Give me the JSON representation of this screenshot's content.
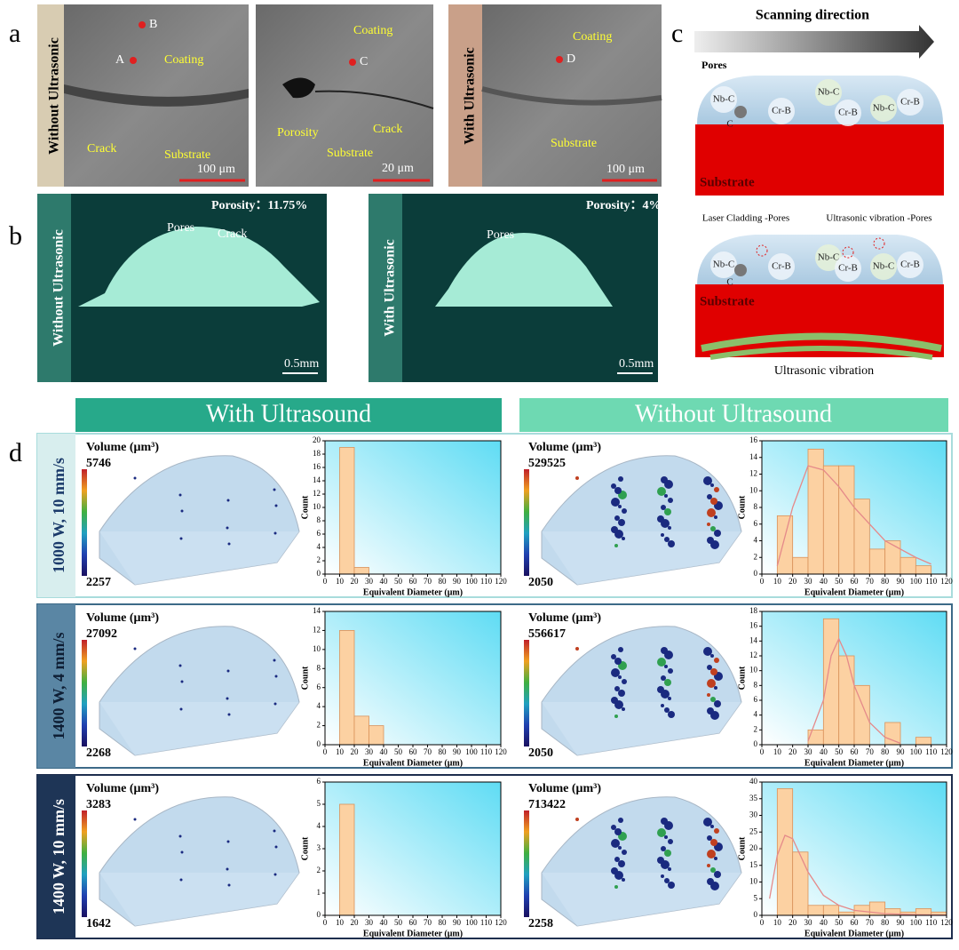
{
  "panel_a": {
    "label": "a",
    "side_labels": [
      "Without Ultrasonic",
      "With Ultrasonic"
    ],
    "images": [
      {
        "points": [
          "B",
          "A"
        ],
        "labels": [
          "Coating",
          "Crack",
          "Substrate"
        ],
        "scale": "100 μm"
      },
      {
        "points": [
          "C"
        ],
        "labels": [
          "Coating",
          "Porosity",
          "Crack",
          "Substrate"
        ],
        "scale": "20 μm"
      },
      {
        "points": [
          "D"
        ],
        "labels": [
          "Coating",
          "Substrate"
        ],
        "scale": "100 μm"
      }
    ]
  },
  "panel_b": {
    "label": "b",
    "images": [
      {
        "side_label": "Without Ultrasonic",
        "porosity": "Porosity：11.75%",
        "labels": [
          "Pores",
          "Crack"
        ],
        "scale": "0.5mm"
      },
      {
        "side_label": "With Ultrasonic",
        "porosity": "Porosity：4%",
        "labels": [
          "Pores"
        ],
        "scale": "0.5mm"
      }
    ]
  },
  "panel_c": {
    "label": "c",
    "arrow": "Scanning direction",
    "top": {
      "pores": "Pores",
      "phases": [
        "Nb-C",
        "C",
        "Cr-B",
        "Nb-C",
        "Cr-B",
        "Nb-C",
        "Cr-B"
      ],
      "substrate": "Substrate"
    },
    "bottom": {
      "annotations": [
        "Laser Cladding -Pores",
        "Ultrasonic vibration -Pores"
      ],
      "phases": [
        "Nb-C",
        "C",
        "Cr-B",
        "Nb-C",
        "Cr-B",
        "Nb-C",
        "Cr-B"
      ],
      "substrate": "Substrate",
      "caption": "Ultrasonic vibration"
    }
  },
  "panel_d": {
    "label": "d",
    "headers": [
      "With Ultrasound",
      "Without Ultrasound"
    ],
    "rows": [
      {
        "label": "1000 W, 10 mm/s",
        "colorbars": [
          {
            "title": "Volume (μm³)",
            "max": 5746,
            "min": 2257
          },
          {
            "title": "Volume (μm³)",
            "max": 529525,
            "min": 2050
          }
        ]
      },
      {
        "label": "1400 W, 4 mm/s",
        "colorbars": [
          {
            "title": "Volume (μm³)",
            "max": 27092,
            "min": 2268
          },
          {
            "title": "Volume (μm³)",
            "max": 556617,
            "min": 2050
          }
        ]
      },
      {
        "label": "1400 W, 10 mm/s",
        "colorbars": [
          {
            "title": "Volume (μm³)",
            "max": 3283,
            "min": 1642
          },
          {
            "title": "Volume (μm³)",
            "max": 713422,
            "min": 2258
          }
        ]
      }
    ]
  },
  "chart_data": [
    {
      "type": "histogram",
      "bins": [
        10,
        20,
        30
      ],
      "counts": [
        19,
        1
      ],
      "color": "#fcd1a2",
      "xlim": [
        0,
        120
      ],
      "xticks": [
        0,
        10,
        20,
        30,
        40,
        50,
        60,
        70,
        80,
        90,
        100,
        110,
        120
      ],
      "ylim": [
        0,
        20
      ],
      "yticks": [
        0,
        2,
        4,
        6,
        8,
        10,
        12,
        14,
        16,
        18,
        20
      ],
      "xlabel": "Equivalent Diameter (μm)",
      "ylabel": "Count"
    },
    {
      "type": "histogram",
      "bins": [
        10,
        20,
        30,
        40,
        50,
        60,
        70,
        80,
        90,
        100,
        110
      ],
      "counts": [
        7,
        2,
        15,
        13,
        13,
        9,
        3,
        4,
        2,
        1
      ],
      "color": "#fcd1a2",
      "xlim": [
        0,
        120
      ],
      "xticks": [
        0,
        10,
        20,
        30,
        40,
        50,
        60,
        70,
        80,
        90,
        100,
        110,
        120
      ],
      "ylim": [
        0,
        16
      ],
      "yticks": [
        0,
        2,
        4,
        6,
        8,
        10,
        12,
        14,
        16
      ],
      "xlabel": "Equivalent Diameter (μm)",
      "ylabel": "Count",
      "fit": {
        "x": [
          10,
          20,
          30,
          40,
          50,
          60,
          70,
          80,
          90,
          100,
          110
        ],
        "y": [
          1,
          8,
          13,
          12.5,
          10.5,
          8,
          6,
          4,
          3,
          2,
          1.2
        ],
        "color": "#e58a8a"
      }
    },
    {
      "type": "histogram",
      "bins": [
        10,
        20,
        30,
        40
      ],
      "counts": [
        12,
        3,
        2
      ],
      "color": "#fcd1a2",
      "xlim": [
        0,
        120
      ],
      "xticks": [
        0,
        10,
        20,
        30,
        40,
        50,
        60,
        70,
        80,
        90,
        100,
        110,
        120
      ],
      "ylim": [
        0,
        14
      ],
      "yticks": [
        0,
        2,
        4,
        6,
        8,
        10,
        12,
        14
      ],
      "xlabel": "Equivalent Diameter (μm)",
      "ylabel": "Count"
    },
    {
      "type": "histogram",
      "bins": [
        30,
        40,
        50,
        60,
        70,
        80,
        90,
        100,
        110
      ],
      "counts": [
        2,
        17,
        12,
        8,
        0,
        3,
        0,
        1
      ],
      "color": "#fcd1a2",
      "xlim": [
        0,
        120
      ],
      "xticks": [
        0,
        10,
        20,
        30,
        40,
        50,
        60,
        70,
        80,
        90,
        100,
        110,
        120
      ],
      "ylim": [
        0,
        18
      ],
      "yticks": [
        0,
        2,
        4,
        6,
        8,
        10,
        12,
        14,
        16,
        18
      ],
      "xlabel": "Equivalent Diameter (μm)",
      "ylabel": "Count",
      "fit": {
        "x": [
          30,
          40,
          45,
          50,
          55,
          60,
          70,
          80,
          90
        ],
        "y": [
          0.5,
          6,
          12,
          14.3,
          12,
          8,
          3,
          1,
          0.2
        ],
        "color": "#e58a8a"
      }
    },
    {
      "type": "histogram",
      "bins": [
        10,
        20
      ],
      "counts": [
        5
      ],
      "color": "#fcd1a2",
      "xlim": [
        0,
        120
      ],
      "xticks": [
        0,
        10,
        20,
        30,
        40,
        50,
        60,
        70,
        80,
        90,
        100,
        110,
        120
      ],
      "ylim": [
        0,
        6
      ],
      "yticks": [
        0,
        1,
        2,
        3,
        4,
        5,
        6
      ],
      "xlabel": "Equivalent Diameter (μm)",
      "ylabel": "Count"
    },
    {
      "type": "histogram",
      "bins": [
        10,
        20,
        30,
        40,
        50,
        60,
        70,
        80,
        90,
        100,
        110,
        120
      ],
      "counts": [
        38,
        19,
        3,
        3,
        1,
        3,
        4,
        2,
        1,
        2,
        1
      ],
      "color": "#fcd1a2",
      "xlim": [
        0,
        120
      ],
      "xticks": [
        0,
        10,
        20,
        30,
        40,
        50,
        60,
        70,
        80,
        90,
        100,
        110,
        120
      ],
      "ylim": [
        0,
        40
      ],
      "yticks": [
        0,
        5,
        10,
        15,
        20,
        25,
        30,
        35,
        40
      ],
      "xlabel": "Equivalent Diameter (μm)",
      "ylabel": "Count",
      "fit": {
        "x": [
          5,
          10,
          15,
          20,
          30,
          40,
          50,
          60,
          80,
          100,
          120
        ],
        "y": [
          5,
          18,
          24,
          23,
          13,
          6,
          3,
          1.5,
          0.5,
          0.2,
          0.1
        ],
        "color": "#e58a8a"
      }
    }
  ]
}
